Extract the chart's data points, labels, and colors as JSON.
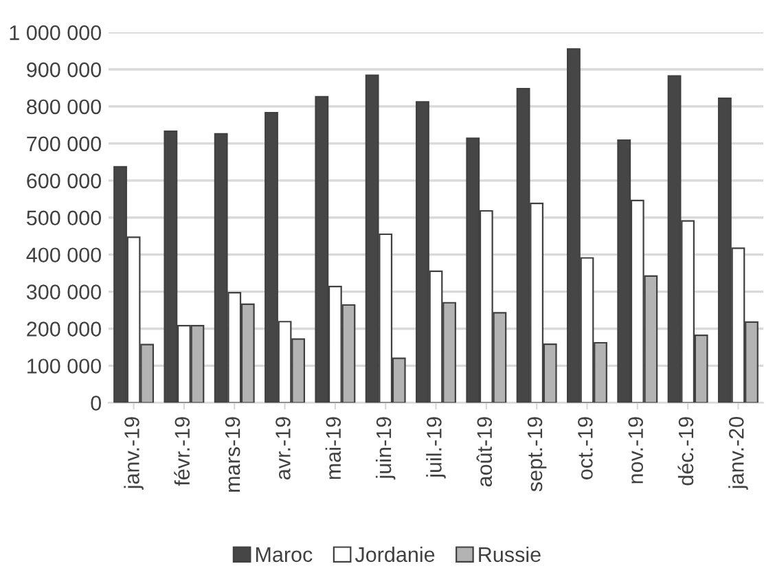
{
  "chart_data": {
    "type": "bar",
    "categories": [
      "janv.-19",
      "févr.-19",
      "mars-19",
      "avr.-19",
      "mai-19",
      "juin-19",
      "juil.-19",
      "août-19",
      "sept.-19",
      "oct.-19",
      "nov.-19",
      "déc.-19",
      "janv.-20"
    ],
    "series": [
      {
        "name": "Maroc",
        "color": "#464646",
        "values": [
          637000,
          733000,
          726000,
          783000,
          826000,
          884000,
          812000,
          714000,
          848000,
          955000,
          709000,
          882000,
          822000
        ]
      },
      {
        "name": "Jordanie",
        "color": "#ffffff",
        "values": [
          447000,
          208000,
          297000,
          219000,
          314000,
          455000,
          355000,
          518000,
          538000,
          391000,
          546000,
          491000,
          417000
        ]
      },
      {
        "name": "Russie",
        "color": "#b3b3b3",
        "values": [
          157000,
          208000,
          266000,
          172000,
          264000,
          120000,
          270000,
          243000,
          158000,
          162000,
          342000,
          182000,
          218000
        ]
      }
    ],
    "ylim": [
      0,
      1000000
    ],
    "yticks": [
      {
        "value": 0,
        "label": "0"
      },
      {
        "value": 100000,
        "label": "100 000"
      },
      {
        "value": 200000,
        "label": "200 000"
      },
      {
        "value": 300000,
        "label": "300 000"
      },
      {
        "value": 400000,
        "label": "400 000"
      },
      {
        "value": 500000,
        "label": "500 000"
      },
      {
        "value": 600000,
        "label": "600 000"
      },
      {
        "value": 700000,
        "label": "700 000"
      },
      {
        "value": 800000,
        "label": "800 000"
      },
      {
        "value": 900000,
        "label": "900 000"
      },
      {
        "value": 1000000,
        "label": "1 000 000"
      }
    ],
    "grid": "y",
    "legend": "bottom"
  }
}
